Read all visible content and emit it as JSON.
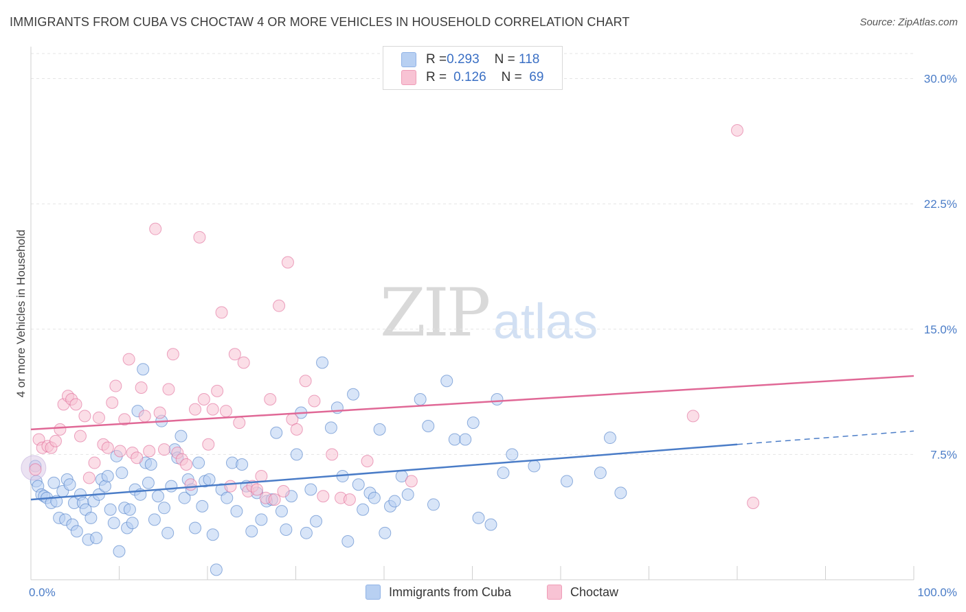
{
  "header": {
    "title": "IMMIGRANTS FROM CUBA VS CHOCTAW 4 OR MORE VEHICLES IN HOUSEHOLD CORRELATION CHART",
    "source": "Source: ZipAtlas.com"
  },
  "watermark": {
    "zip": "ZIP",
    "atlas": "atlas"
  },
  "legend": {
    "rows": [
      {
        "r_label": "R = ",
        "r_value": "0.293",
        "n_label": "N = ",
        "n_value": "118",
        "color": "#b8d0f2"
      },
      {
        "r_label": "R = ",
        "r_value": "0.126",
        "n_label": "N = ",
        "n_value": " 69",
        "color": "#f8c3d4"
      }
    ]
  },
  "bottom_legend": {
    "items": [
      {
        "label": "Immigrants from Cuba",
        "color": "#b8d0f2"
      },
      {
        "label": "Choctaw",
        "color": "#f8c3d4"
      }
    ]
  },
  "chart_data": {
    "type": "scatter",
    "title": "IMMIGRANTS FROM CUBA VS CHOCTAW 4 OR MORE VEHICLES IN HOUSEHOLD CORRELATION CHART",
    "xlabel": "",
    "ylabel": "4 or more Vehicles in Household",
    "xlim": [
      0,
      100
    ],
    "ylim": [
      0,
      31.5
    ],
    "x_tick_labels": [
      "0.0%",
      "100.0%"
    ],
    "y_ticks": [
      7.5,
      15.0,
      22.5,
      30.0
    ],
    "y_tick_labels": [
      "7.5%",
      "15.0%",
      "22.5%",
      "30.0%"
    ],
    "grid": true,
    "legend_position": "top-center",
    "series": [
      {
        "name": "Immigrants from Cuba",
        "color": "#4a7cc7",
        "fill": "#b8d0f2",
        "trend": {
          "x": [
            0,
            80
          ],
          "y": [
            4.8,
            8.1
          ],
          "dashed_extension_x": [
            80,
            100
          ],
          "dashed_extension_y": [
            8.1,
            8.9
          ]
        },
        "points": [
          [
            0.5,
            6.8
          ],
          [
            0.6,
            5.9
          ],
          [
            0.8,
            5.6
          ],
          [
            1.2,
            5.1
          ],
          [
            1.5,
            5.0
          ],
          [
            1.8,
            4.9
          ],
          [
            2.3,
            4.6
          ],
          [
            2.6,
            5.8
          ],
          [
            2.9,
            4.7
          ],
          [
            3.2,
            3.7
          ],
          [
            3.6,
            5.3
          ],
          [
            3.9,
            3.6
          ],
          [
            4.1,
            6.0
          ],
          [
            4.4,
            5.7
          ],
          [
            4.7,
            3.3
          ],
          [
            4.9,
            4.6
          ],
          [
            5.2,
            2.9
          ],
          [
            5.6,
            5.1
          ],
          [
            5.9,
            4.6
          ],
          [
            6.2,
            4.2
          ],
          [
            6.5,
            2.4
          ],
          [
            6.8,
            3.7
          ],
          [
            7.1,
            4.7
          ],
          [
            7.4,
            2.5
          ],
          [
            7.7,
            5.1
          ],
          [
            8.0,
            6.0
          ],
          [
            8.4,
            5.6
          ],
          [
            8.7,
            6.2
          ],
          [
            9.0,
            4.2
          ],
          [
            9.4,
            3.4
          ],
          [
            9.7,
            7.4
          ],
          [
            10.0,
            1.7
          ],
          [
            10.3,
            6.4
          ],
          [
            10.6,
            4.3
          ],
          [
            10.9,
            3.1
          ],
          [
            11.2,
            4.2
          ],
          [
            11.5,
            3.4
          ],
          [
            11.8,
            5.4
          ],
          [
            12.1,
            10.1
          ],
          [
            12.4,
            5.1
          ],
          [
            12.7,
            12.6
          ],
          [
            13.0,
            7.0
          ],
          [
            13.3,
            5.8
          ],
          [
            13.6,
            6.9
          ],
          [
            14.0,
            3.6
          ],
          [
            14.4,
            5.0
          ],
          [
            14.8,
            9.5
          ],
          [
            15.1,
            4.3
          ],
          [
            15.5,
            2.8
          ],
          [
            15.9,
            5.6
          ],
          [
            16.3,
            7.8
          ],
          [
            16.6,
            7.3
          ],
          [
            17.0,
            8.6
          ],
          [
            17.4,
            4.9
          ],
          [
            17.8,
            6.0
          ],
          [
            18.2,
            5.4
          ],
          [
            18.6,
            3.1
          ],
          [
            19.0,
            7.0
          ],
          [
            19.4,
            4.4
          ],
          [
            19.7,
            5.9
          ],
          [
            20.2,
            6.0
          ],
          [
            20.6,
            2.7
          ],
          [
            21.0,
            0.6
          ],
          [
            21.6,
            5.4
          ],
          [
            22.2,
            4.9
          ],
          [
            22.8,
            7.0
          ],
          [
            23.3,
            4.1
          ],
          [
            23.9,
            6.9
          ],
          [
            24.4,
            5.6
          ],
          [
            25.0,
            2.9
          ],
          [
            25.6,
            5.2
          ],
          [
            26.1,
            3.6
          ],
          [
            26.7,
            4.7
          ],
          [
            27.3,
            4.8
          ],
          [
            27.8,
            8.8
          ],
          [
            28.4,
            4.1
          ],
          [
            28.9,
            3.0
          ],
          [
            29.5,
            5.0
          ],
          [
            30.1,
            7.5
          ],
          [
            30.6,
            10.0
          ],
          [
            31.2,
            2.8
          ],
          [
            31.7,
            5.4
          ],
          [
            32.3,
            3.5
          ],
          [
            33.0,
            13.0
          ],
          [
            34.0,
            9.1
          ],
          [
            34.7,
            10.3
          ],
          [
            35.3,
            6.2
          ],
          [
            35.9,
            2.3
          ],
          [
            36.5,
            11.1
          ],
          [
            37.1,
            5.7
          ],
          [
            37.6,
            4.2
          ],
          [
            38.4,
            5.2
          ],
          [
            38.9,
            4.9
          ],
          [
            39.5,
            9.0
          ],
          [
            40.1,
            2.8
          ],
          [
            40.7,
            4.4
          ],
          [
            41.2,
            4.7
          ],
          [
            42.0,
            6.2
          ],
          [
            42.7,
            5.1
          ],
          [
            44.1,
            10.8
          ],
          [
            45.0,
            9.2
          ],
          [
            45.6,
            4.5
          ],
          [
            47.1,
            11.9
          ],
          [
            48.0,
            8.4
          ],
          [
            49.2,
            8.4
          ],
          [
            50.1,
            9.4
          ],
          [
            50.7,
            3.7
          ],
          [
            52.1,
            3.3
          ],
          [
            52.8,
            10.8
          ],
          [
            53.5,
            6.4
          ],
          [
            54.5,
            7.5
          ],
          [
            57.0,
            6.8
          ],
          [
            60.7,
            5.9
          ],
          [
            64.5,
            6.4
          ],
          [
            65.6,
            8.5
          ],
          [
            66.8,
            5.2
          ]
        ]
      },
      {
        "name": "Choctaw",
        "color": "#e06896",
        "fill": "#f8c3d4",
        "trend": {
          "x": [
            0,
            100
          ],
          "y": [
            9.0,
            12.2
          ]
        },
        "points": [
          [
            0.5,
            6.6
          ],
          [
            0.9,
            8.4
          ],
          [
            1.3,
            7.9
          ],
          [
            1.9,
            8.0
          ],
          [
            2.3,
            7.9
          ],
          [
            2.8,
            8.3
          ],
          [
            3.3,
            9.0
          ],
          [
            3.7,
            10.5
          ],
          [
            4.2,
            11.0
          ],
          [
            4.6,
            10.8
          ],
          [
            5.1,
            10.5
          ],
          [
            5.6,
            8.6
          ],
          [
            6.1,
            9.8
          ],
          [
            6.6,
            6.1
          ],
          [
            7.2,
            7.0
          ],
          [
            7.7,
            9.7
          ],
          [
            8.2,
            8.1
          ],
          [
            8.7,
            7.9
          ],
          [
            9.2,
            10.6
          ],
          [
            9.6,
            11.6
          ],
          [
            10.1,
            7.7
          ],
          [
            10.6,
            9.6
          ],
          [
            11.1,
            13.2
          ],
          [
            11.5,
            7.6
          ],
          [
            12.0,
            7.3
          ],
          [
            12.5,
            11.5
          ],
          [
            12.9,
            9.8
          ],
          [
            13.4,
            7.7
          ],
          [
            14.1,
            21.0
          ],
          [
            14.6,
            10.0
          ],
          [
            15.1,
            7.8
          ],
          [
            15.6,
            11.4
          ],
          [
            16.1,
            13.5
          ],
          [
            16.6,
            7.6
          ],
          [
            17.1,
            7.2
          ],
          [
            17.6,
            6.9
          ],
          [
            18.1,
            5.7
          ],
          [
            18.6,
            10.2
          ],
          [
            19.1,
            20.5
          ],
          [
            19.6,
            10.8
          ],
          [
            20.1,
            8.1
          ],
          [
            20.6,
            10.2
          ],
          [
            21.1,
            11.3
          ],
          [
            21.6,
            16.0
          ],
          [
            22.1,
            10.1
          ],
          [
            22.6,
            5.6
          ],
          [
            23.1,
            13.5
          ],
          [
            23.6,
            9.4
          ],
          [
            24.1,
            13.0
          ],
          [
            24.6,
            5.3
          ],
          [
            25.1,
            5.6
          ],
          [
            25.6,
            5.4
          ],
          [
            26.1,
            6.2
          ],
          [
            26.6,
            4.9
          ],
          [
            27.1,
            10.8
          ],
          [
            27.6,
            4.8
          ],
          [
            28.1,
            16.4
          ],
          [
            28.6,
            5.3
          ],
          [
            29.1,
            19.0
          ],
          [
            29.6,
            9.6
          ],
          [
            30.1,
            9.0
          ],
          [
            31.1,
            11.9
          ],
          [
            32.1,
            10.7
          ],
          [
            33.1,
            5.0
          ],
          [
            34.1,
            7.5
          ],
          [
            35.1,
            4.9
          ],
          [
            36.1,
            4.8
          ],
          [
            38.1,
            7.1
          ],
          [
            43.1,
            5.9
          ],
          [
            75.0,
            9.8
          ],
          [
            80.0,
            26.9
          ],
          [
            81.8,
            4.6
          ]
        ]
      }
    ]
  }
}
